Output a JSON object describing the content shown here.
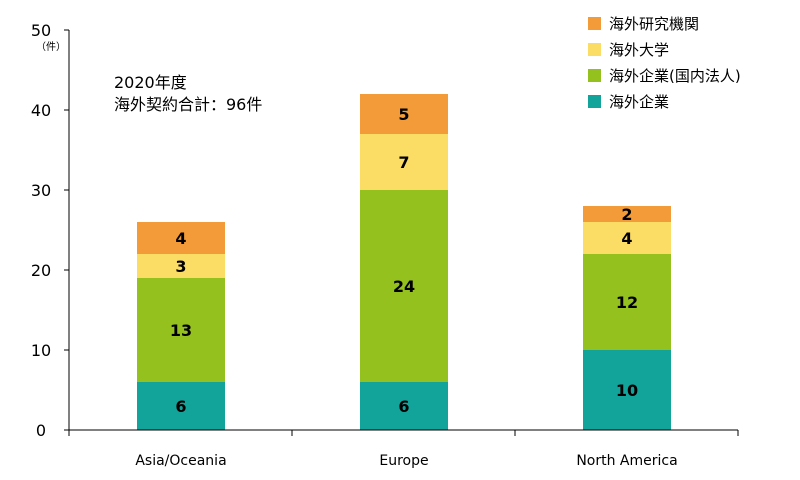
{
  "chart_data": {
    "type": "bar",
    "stacked": true,
    "categories": [
      "Asia/Oceania",
      "Europe",
      "North America"
    ],
    "series": [
      {
        "name": "海外企業",
        "color": "#12a39b",
        "values": [
          6,
          6,
          10
        ]
      },
      {
        "name": "海外企業(国内法人)",
        "color": "#95c11f",
        "values": [
          13,
          24,
          12
        ]
      },
      {
        "name": "海外大学",
        "color": "#fbdc64",
        "values": [
          3,
          7,
          4
        ]
      },
      {
        "name": "海外研究機関",
        "color": "#f29b38",
        "values": [
          4,
          5,
          2
        ]
      }
    ],
    "ylim": [
      0,
      50
    ],
    "yticks": [
      0,
      10,
      20,
      30,
      40,
      50
    ],
    "yunit": "（件）",
    "annotation": [
      "2020年度",
      "海外契約合計：96件"
    ],
    "legend_position": "top-right",
    "grid": false
  }
}
